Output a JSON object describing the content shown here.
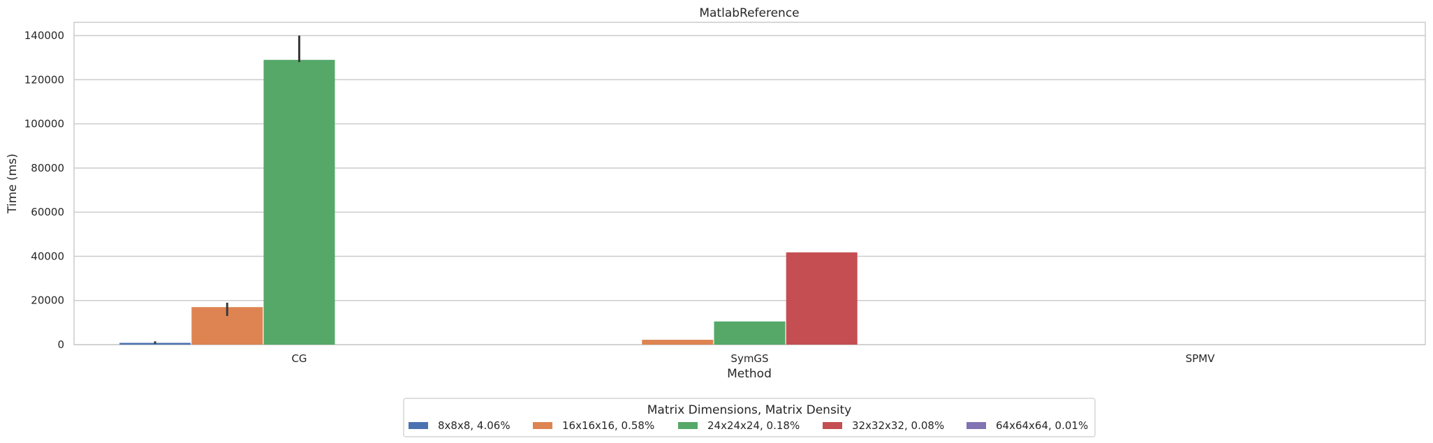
{
  "chart_data": {
    "type": "bar",
    "title": "MatlabReference",
    "xlabel": "Method",
    "ylabel": "Time (ms)",
    "ylim": [
      0,
      146000
    ],
    "yticks": [
      0,
      20000,
      40000,
      60000,
      80000,
      100000,
      120000,
      140000
    ],
    "categories": [
      "CG",
      "SymGS",
      "SPMV"
    ],
    "grid": "horizontal",
    "legend_placement": "bottom-center",
    "legend_title": "Matrix Dimensions, Matrix Density",
    "series": [
      {
        "name": "8x8x8, 4.06%",
        "color": "#4c72b0",
        "values": [
          800,
          0,
          0
        ],
        "err_low": [
          400,
          null,
          null
        ],
        "err_high": [
          1500,
          null,
          null
        ]
      },
      {
        "name": "16x16x16, 0.58%",
        "color": "#dd8452",
        "values": [
          17000,
          2200,
          0
        ],
        "err_low": [
          13000,
          null,
          null
        ],
        "err_high": [
          19000,
          null,
          null
        ]
      },
      {
        "name": "24x24x24, 0.18%",
        "color": "#55a868",
        "values": [
          129000,
          10500,
          0
        ],
        "err_low": [
          128000,
          null,
          null
        ],
        "err_high": [
          140000,
          null,
          null
        ]
      },
      {
        "name": "32x32x32, 0.08%",
        "color": "#c44e52",
        "values": [
          0,
          41800,
          0
        ],
        "err_low": [
          null,
          null,
          null
        ],
        "err_high": [
          null,
          null,
          null
        ]
      },
      {
        "name": "64x64x64, 0.01%",
        "color": "#8172b3",
        "values": [
          0,
          0,
          0
        ],
        "err_low": [
          null,
          null,
          null
        ],
        "err_high": [
          null,
          null,
          null
        ]
      }
    ]
  }
}
